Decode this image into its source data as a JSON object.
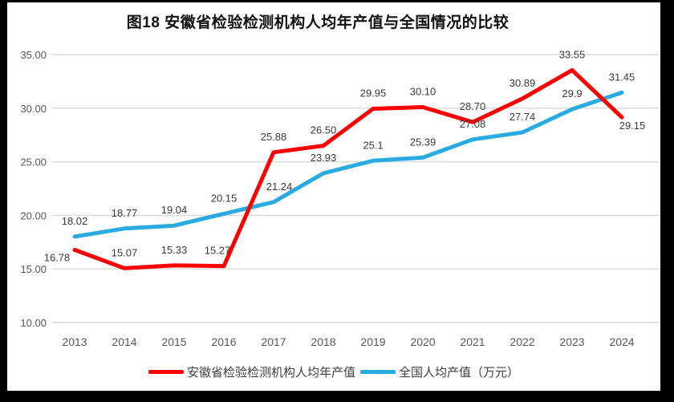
{
  "chart_data": {
    "type": "line",
    "title": "图18 安徽省检验检测机构人均年产值与全国情况的比较",
    "categories": [
      "2013",
      "2014",
      "2015",
      "2016",
      "2017",
      "2018",
      "2019",
      "2020",
      "2021",
      "2022",
      "2023",
      "2024"
    ],
    "series": [
      {
        "name": "安徽省检验检测机构人均年产值",
        "color": "#FF0000",
        "values": [
          16.78,
          15.07,
          15.33,
          15.27,
          25.88,
          26.5,
          29.95,
          30.1,
          28.7,
          30.89,
          33.55,
          29.15
        ],
        "labels": [
          "16.78",
          "15.07",
          "15.33",
          "15.27",
          "25.88",
          "26.50",
          "29.95",
          "30.10",
          "28.70",
          "30.89",
          "33.55",
          "29.15"
        ]
      },
      {
        "name": "全国人均产值（万元）",
        "color": "#29ABE2",
        "values": [
          18.02,
          18.77,
          19.04,
          20.15,
          21.24,
          23.93,
          25.1,
          25.39,
          27.08,
          27.74,
          29.9,
          31.45
        ],
        "labels": [
          "18.02",
          "18.77",
          "19.04",
          "20.15",
          "21.24",
          "23.93",
          "25.1",
          "25.39",
          "27.08",
          "27.74",
          "29.9",
          "31.45"
        ]
      }
    ],
    "y_ticks": [
      "35.00",
      "30.00",
      "25.00",
      "20.00",
      "15.00",
      "10.00"
    ],
    "ylim": [
      10,
      35
    ],
    "xlabel": "",
    "ylabel": "",
    "grid": true,
    "legend_position": "bottom"
  }
}
